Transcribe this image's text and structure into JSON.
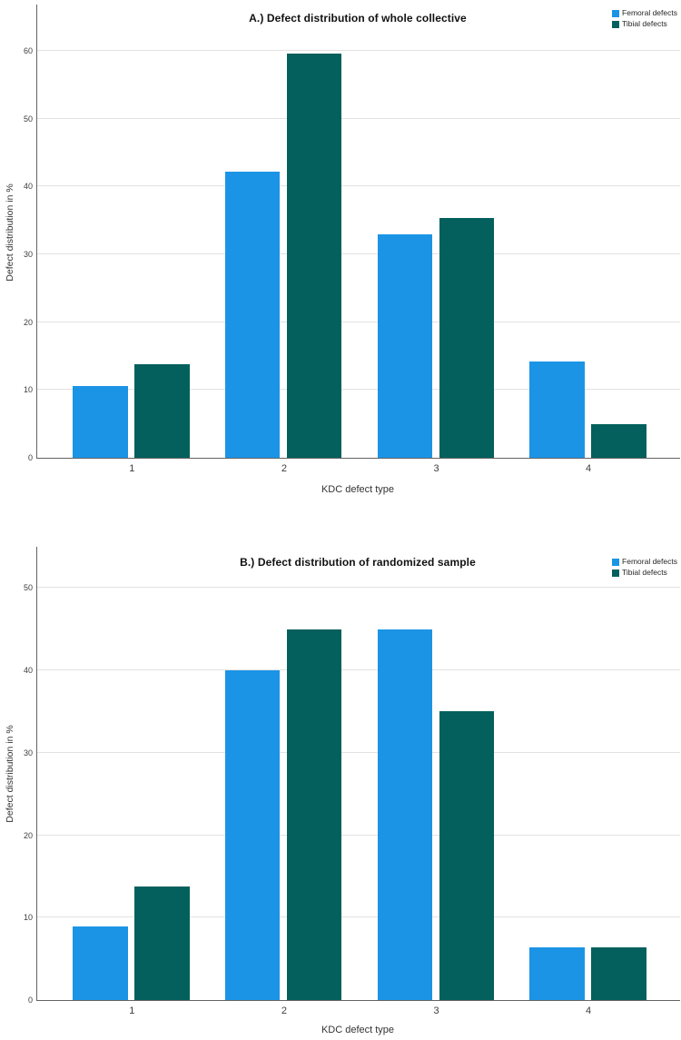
{
  "figure": {
    "background": "#ffffff",
    "grid_color": "#e2e2e2",
    "axis_color": "#636363",
    "text_color": "#262626"
  },
  "chart_data": [
    {
      "type": "bar",
      "title": "A.) Defect distribution of whole collective",
      "xlabel": "KDC defect type",
      "ylabel": "Defect distribution in %",
      "categories": [
        "1",
        "2",
        "3",
        "4"
      ],
      "series": [
        {
          "name": "Femoral defects",
          "color": "#1b94e6",
          "values": [
            10.6,
            42.2,
            33.0,
            14.2
          ]
        },
        {
          "name": "Tibial defects",
          "color": "#03605c",
          "values": [
            13.8,
            59.6,
            35.3,
            5.0
          ]
        }
      ],
      "y_ticks": [
        0,
        10,
        20,
        30,
        40,
        50,
        60
      ],
      "y_axis_max": 66.8,
      "grid": "horizontal",
      "legend_position": "top-right"
    },
    {
      "type": "bar",
      "title": "B.) Defect distribution of randomized sample",
      "xlabel": "KDC defect type",
      "ylabel": "Defect distribution in %",
      "categories": [
        "1",
        "2",
        "3",
        "4"
      ],
      "series": [
        {
          "name": "Femoral defects",
          "color": "#1b94e6",
          "values": [
            8.9,
            40.0,
            45.0,
            6.4
          ]
        },
        {
          "name": "Tibial defects",
          "color": "#03605c",
          "values": [
            13.8,
            45.0,
            35.0,
            6.4
          ]
        }
      ],
      "y_ticks": [
        0,
        10,
        20,
        30,
        40,
        50
      ],
      "y_axis_max": 55,
      "grid": "horizontal",
      "legend_position": "top-right"
    }
  ]
}
